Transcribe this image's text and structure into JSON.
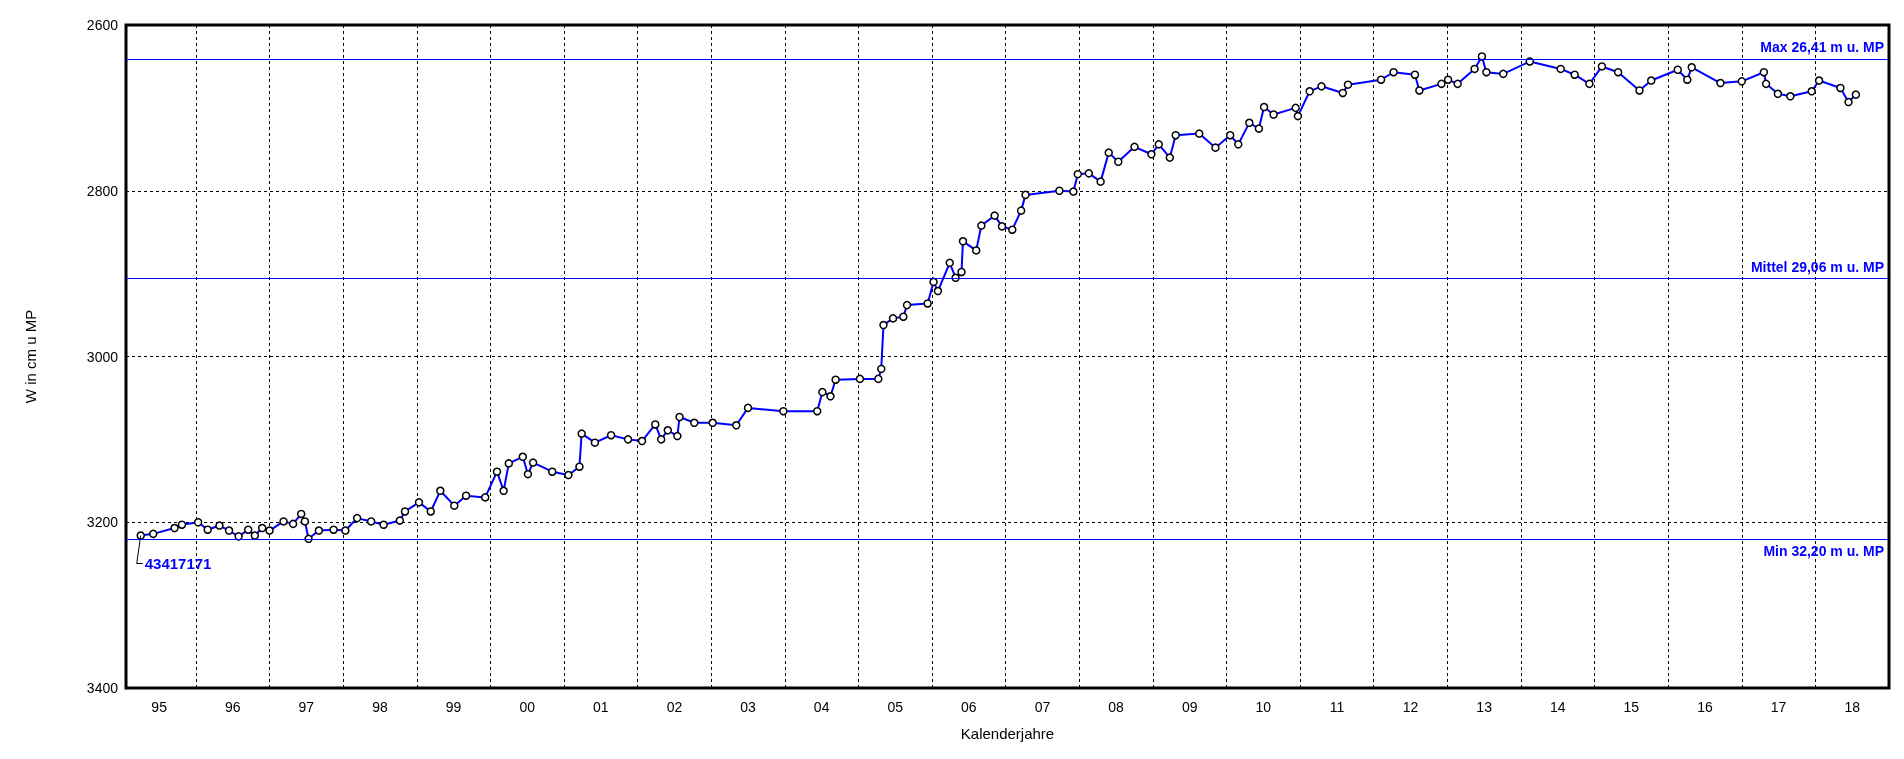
{
  "chart_data": {
    "type": "line",
    "xlabel": "Kalenderjahre",
    "ylabel": "W in cm u MP",
    "xlim": [
      1994.55,
      2018.5
    ],
    "xticks": [
      {
        "value": 1995,
        "label": "95"
      },
      {
        "value": 1996,
        "label": "96"
      },
      {
        "value": 1997,
        "label": "97"
      },
      {
        "value": 1998,
        "label": "98"
      },
      {
        "value": 1999,
        "label": "99"
      },
      {
        "value": 2000,
        "label": "00"
      },
      {
        "value": 2001,
        "label": "01"
      },
      {
        "value": 2002,
        "label": "02"
      },
      {
        "value": 2003,
        "label": "03"
      },
      {
        "value": 2004,
        "label": "04"
      },
      {
        "value": 2005,
        "label": "05"
      },
      {
        "value": 2006,
        "label": "06"
      },
      {
        "value": 2007,
        "label": "07"
      },
      {
        "value": 2008,
        "label": "08"
      },
      {
        "value": 2009,
        "label": "09"
      },
      {
        "value": 2010,
        "label": "10"
      },
      {
        "value": 2011,
        "label": "11"
      },
      {
        "value": 2012,
        "label": "12"
      },
      {
        "value": 2013,
        "label": "13"
      },
      {
        "value": 2014,
        "label": "14"
      },
      {
        "value": 2015,
        "label": "15"
      },
      {
        "value": 2016,
        "label": "16"
      },
      {
        "value": 2017,
        "label": "17"
      },
      {
        "value": 2018,
        "label": "18"
      },
      {
        "value": 1995.5,
        "label": null
      },
      {
        "value": 1996.5,
        "label": null
      },
      {
        "value": 1997.5,
        "label": null
      },
      {
        "value": 1998.5,
        "label": null
      },
      {
        "value": 1999.5,
        "label": null
      },
      {
        "value": 2000.5,
        "label": null
      },
      {
        "value": 2001.5,
        "label": null
      },
      {
        "value": 2002.5,
        "label": null
      },
      {
        "value": 2003.5,
        "label": null
      },
      {
        "value": 2004.5,
        "label": null
      },
      {
        "value": 2005.5,
        "label": null
      },
      {
        "value": 2006.5,
        "label": null
      },
      {
        "value": 2007.5,
        "label": null
      },
      {
        "value": 2008.5,
        "label": null
      },
      {
        "value": 2009.5,
        "label": null
      },
      {
        "value": 2010.5,
        "label": null
      },
      {
        "value": 2011.5,
        "label": null
      },
      {
        "value": 2012.5,
        "label": null
      },
      {
        "value": 2013.5,
        "label": null
      },
      {
        "value": 2014.5,
        "label": null
      },
      {
        "value": 2015.5,
        "label": null
      },
      {
        "value": 2016.5,
        "label": null
      },
      {
        "value": 2017.5,
        "label": null
      }
    ],
    "ylim": [
      3400,
      2600
    ],
    "yticks": [
      2600,
      2800,
      3000,
      3200,
      3400
    ],
    "grid": true,
    "marker": "circle",
    "line_style": "solid",
    "x": [
      1994.75,
      1994.92,
      1995.21,
      1995.31,
      1995.53,
      1995.66,
      1995.82,
      1995.95,
      1996.08,
      1996.21,
      1996.3,
      1996.4,
      1996.5,
      1996.69,
      1996.82,
      1996.93,
      1996.98,
      1997.03,
      1997.17,
      1997.37,
      1997.53,
      1997.69,
      1997.88,
      1998.05,
      1998.27,
      1998.34,
      1998.53,
      1998.69,
      1998.82,
      1999.01,
      1999.17,
      1999.43,
      1999.59,
      1999.68,
      1999.75,
      1999.94,
      2000.01,
      2000.08,
      2000.34,
      2000.56,
      2000.71,
      2000.74,
      2000.92,
      2001.14,
      2001.37,
      2001.56,
      2001.74,
      2001.82,
      2001.91,
      2002.04,
      2002.07,
      2002.27,
      2002.52,
      2002.84,
      2003.0,
      2003.48,
      2003.94,
      2004.01,
      2004.12,
      2004.19,
      2004.52,
      2004.77,
      2004.81,
      2004.84,
      2004.97,
      2005.11,
      2005.16,
      2005.44,
      2005.52,
      2005.58,
      2005.74,
      2005.82,
      2005.9,
      2005.92,
      2006.1,
      2006.17,
      2006.35,
      2006.45,
      2006.59,
      2006.71,
      2006.77,
      2007.23,
      2007.42,
      2007.48,
      2007.63,
      2007.79,
      2007.9,
      2008.03,
      2008.25,
      2008.48,
      2008.58,
      2008.73,
      2008.81,
      2009.13,
      2009.35,
      2009.55,
      2009.66,
      2009.81,
      2009.94,
      2010.01,
      2010.14,
      2010.44,
      2010.47,
      2010.63,
      2010.79,
      2011.08,
      2011.15,
      2011.6,
      2011.77,
      2012.06,
      2012.12,
      2012.42,
      2012.51,
      2012.64,
      2012.87,
      2012.97,
      2013.03,
      2013.26,
      2013.62,
      2014.04,
      2014.23,
      2014.43,
      2014.6,
      2014.82,
      2015.11,
      2015.27,
      2015.63,
      2015.76,
      2015.82,
      2016.21,
      2016.5,
      2016.8,
      2016.83,
      2016.99,
      2017.16,
      2017.45,
      2017.55,
      2017.84,
      2017.95,
      2018.05
    ],
    "series": [
      {
        "color": "#0000ff",
        "values": [
          3216,
          3214,
          3207,
          3203,
          3200,
          3209,
          3204,
          3210,
          3217,
          3209,
          3216,
          3207,
          3210,
          3199,
          3202,
          3190,
          3199,
          3220,
          3210,
          3209,
          3210,
          3195,
          3199,
          3203,
          3198,
          3187,
          3176,
          3187,
          3162,
          3180,
          3168,
          3170,
          3139,
          3162,
          3129,
          3121,
          3142,
          3128,
          3139,
          3143,
          3133,
          3093,
          3104,
          3095,
          3100,
          3102,
          3082,
          3100,
          3089,
          3096,
          3073,
          3080,
          3080,
          3083,
          3062,
          3066,
          3066,
          3043,
          3048,
          3028,
          3027,
          3027,
          3015,
          2962,
          2954,
          2952,
          2938,
          2936,
          2910,
          2921,
          2887,
          2905,
          2898,
          2861,
          2872,
          2842,
          2830,
          2843,
          2847,
          2824,
          2805,
          2800,
          2801,
          2780,
          2779,
          2789,
          2754,
          2765,
          2747,
          2756,
          2744,
          2760,
          2733,
          2731,
          2748,
          2733,
          2744,
          2718,
          2725,
          2699,
          2708,
          2700,
          2710,
          2680,
          2674,
          2682,
          2672,
          2666,
          2657,
          2660,
          2679,
          2671,
          2666,
          2671,
          2653,
          2638,
          2657,
          2659,
          2644,
          2653,
          2660,
          2671,
          2650,
          2657,
          2679,
          2667,
          2654,
          2666,
          2651,
          2670,
          2668,
          2657,
          2671,
          2683,
          2686,
          2680,
          2667,
          2676,
          2693,
          2684
        ]
      }
    ],
    "ref_lines": [
      {
        "axis": "y",
        "value": 2641,
        "label": "Max 26,41 m u. MP",
        "color": "#0000ff"
      },
      {
        "axis": "y",
        "value": 2906,
        "label": "Mittel 29,06 m u. MP",
        "color": "#0000ff"
      },
      {
        "axis": "y",
        "value": 3220,
        "label": "Min 32,20 m u. MP",
        "color": "#0000ff"
      }
    ],
    "annotations": [
      {
        "text": "43417171",
        "x": 1994.75,
        "y": 3216
      }
    ]
  }
}
